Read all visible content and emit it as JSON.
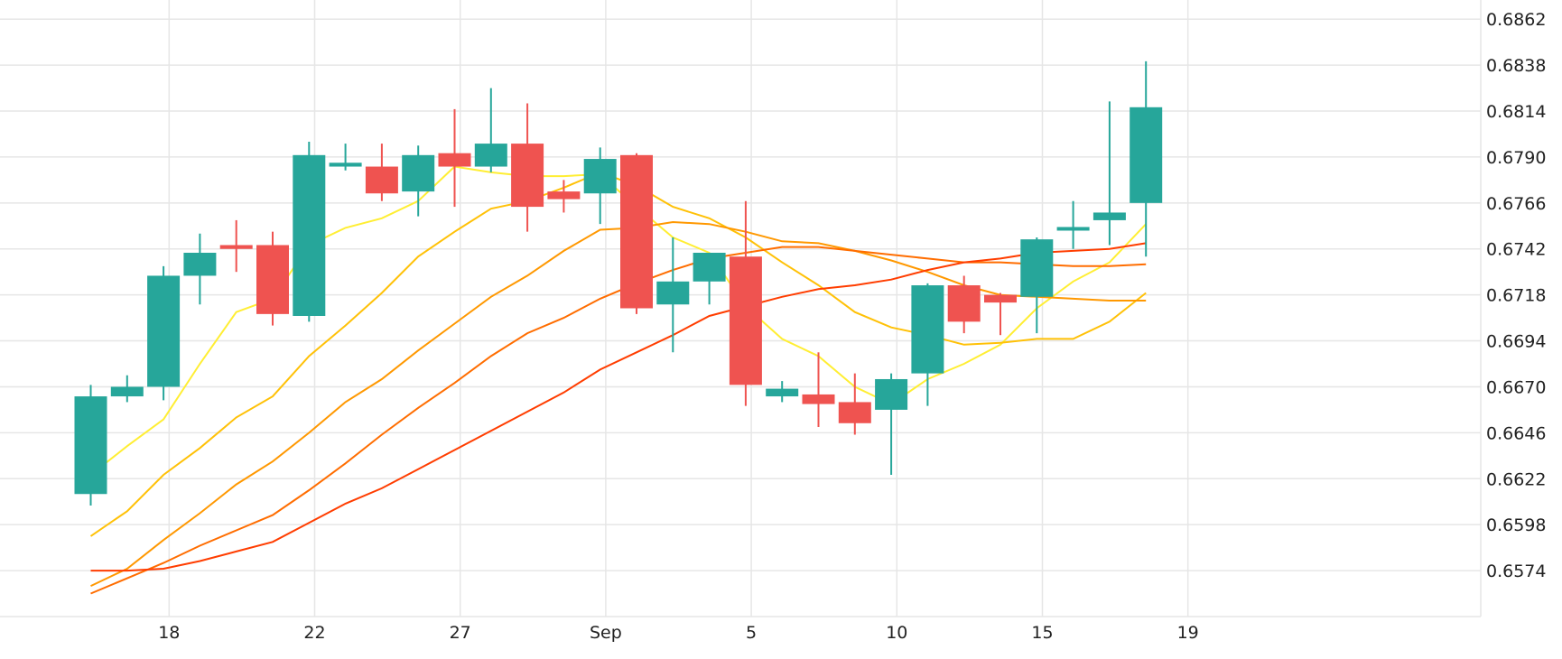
{
  "chart_data": {
    "type": "candlestick",
    "x_labels": [
      {
        "label": "18",
        "x": 1
      },
      {
        "label": "22",
        "x": 5
      },
      {
        "label": "27",
        "x": 9
      },
      {
        "label": "Sep",
        "x": 13
      },
      {
        "label": "5",
        "x": 17
      },
      {
        "label": "10",
        "x": 21
      },
      {
        "label": "15",
        "x": 25
      },
      {
        "label": "19",
        "x": 29
      }
    ],
    "y_ticks": [
      "0.6574",
      "0.6598",
      "0.6622",
      "0.6646",
      "0.6670",
      "0.6694",
      "0.6718",
      "0.6742",
      "0.6766",
      "0.6790",
      "0.6814",
      "0.6838",
      "0.6862"
    ],
    "ylim": [
      0.655,
      0.6872
    ],
    "up_color": "#26a69a",
    "down_color": "#ef5350",
    "candles": [
      {
        "x": 0,
        "open": 0.6614,
        "high": 0.6671,
        "low": 0.6608,
        "close": 0.6665
      },
      {
        "x": 1,
        "open": 0.6665,
        "high": 0.6676,
        "low": 0.6662,
        "close": 0.667
      },
      {
        "x": 2,
        "open": 0.667,
        "high": 0.6733,
        "low": 0.6663,
        "close": 0.6728
      },
      {
        "x": 3,
        "open": 0.6728,
        "high": 0.675,
        "low": 0.6713,
        "close": 0.674
      },
      {
        "x": 4,
        "open": 0.6744,
        "high": 0.6757,
        "low": 0.673,
        "close": 0.6742
      },
      {
        "x": 5,
        "open": 0.6744,
        "high": 0.6751,
        "low": 0.6702,
        "close": 0.6708
      },
      {
        "x": 6,
        "open": 0.6707,
        "high": 0.6798,
        "low": 0.6704,
        "close": 0.6791
      },
      {
        "x": 7,
        "open": 0.6785,
        "high": 0.6797,
        "low": 0.6783,
        "close": 0.6787
      },
      {
        "x": 8,
        "open": 0.6785,
        "high": 0.6797,
        "low": 0.6767,
        "close": 0.6771
      },
      {
        "x": 9,
        "open": 0.6772,
        "high": 0.6796,
        "low": 0.6759,
        "close": 0.6791
      },
      {
        "x": 10,
        "open": 0.6792,
        "high": 0.6815,
        "low": 0.6764,
        "close": 0.6785
      },
      {
        "x": 11,
        "open": 0.6785,
        "high": 0.6826,
        "low": 0.6782,
        "close": 0.6797
      },
      {
        "x": 12,
        "open": 0.6797,
        "high": 0.6818,
        "low": 0.6751,
        "close": 0.6764
      },
      {
        "x": 13,
        "open": 0.6772,
        "high": 0.6778,
        "low": 0.6761,
        "close": 0.6768
      },
      {
        "x": 14,
        "open": 0.6771,
        "high": 0.6795,
        "low": 0.6755,
        "close": 0.6789
      },
      {
        "x": 15,
        "open": 0.6791,
        "high": 0.6792,
        "low": 0.6708,
        "close": 0.6711
      },
      {
        "x": 16,
        "open": 0.6713,
        "high": 0.6748,
        "low": 0.6688,
        "close": 0.6725
      },
      {
        "x": 17,
        "open": 0.6725,
        "high": 0.6739,
        "low": 0.6713,
        "close": 0.674
      },
      {
        "x": 18,
        "open": 0.6738,
        "high": 0.6767,
        "low": 0.666,
        "close": 0.6671
      },
      {
        "x": 19,
        "open": 0.6665,
        "high": 0.6673,
        "low": 0.6662,
        "close": 0.6669
      },
      {
        "x": 20,
        "open": 0.6666,
        "high": 0.6688,
        "low": 0.6649,
        "close": 0.6661
      },
      {
        "x": 21,
        "open": 0.6662,
        "high": 0.6677,
        "low": 0.6645,
        "close": 0.6651
      },
      {
        "x": 22,
        "open": 0.6658,
        "high": 0.6677,
        "low": 0.6624,
        "close": 0.6674
      },
      {
        "x": 23,
        "open": 0.6677,
        "high": 0.6724,
        "low": 0.666,
        "close": 0.6723
      },
      {
        "x": 24,
        "open": 0.6723,
        "high": 0.6728,
        "low": 0.6698,
        "close": 0.6704
      },
      {
        "x": 25,
        "open": 0.6718,
        "high": 0.6719,
        "low": 0.6697,
        "close": 0.6714
      },
      {
        "x": 26,
        "open": 0.6717,
        "high": 0.6748,
        "low": 0.6698,
        "close": 0.6747
      },
      {
        "x": 27,
        "open": 0.6752,
        "high": 0.6767,
        "low": 0.6742,
        "close": 0.6753
      },
      {
        "x": 28,
        "open": 0.6757,
        "high": 0.6819,
        "low": 0.6744,
        "close": 0.6761
      },
      {
        "x": 29,
        "open": 0.6766,
        "high": 0.684,
        "low": 0.6738,
        "close": 0.6816
      }
    ],
    "moving_averages": [
      {
        "color": "#ffee33",
        "values": [
          [
            0,
            0.6624
          ],
          [
            1,
            0.6639
          ],
          [
            2,
            0.6653
          ],
          [
            3,
            0.6682
          ],
          [
            4,
            0.6709
          ],
          [
            5,
            0.6716
          ],
          [
            6,
            0.6744
          ],
          [
            7,
            0.6753
          ],
          [
            8,
            0.6758
          ],
          [
            9,
            0.6767
          ],
          [
            10,
            0.6785
          ],
          [
            11,
            0.6782
          ],
          [
            12,
            0.678
          ],
          [
            13,
            0.678
          ],
          [
            14,
            0.6781
          ],
          [
            15,
            0.6764
          ],
          [
            16,
            0.6748
          ],
          [
            17,
            0.674
          ],
          [
            18,
            0.6712
          ],
          [
            19,
            0.6695
          ],
          [
            20,
            0.6686
          ],
          [
            21,
            0.667
          ],
          [
            22,
            0.6661
          ],
          [
            23,
            0.6674
          ],
          [
            24,
            0.6682
          ],
          [
            25,
            0.6692
          ],
          [
            26,
            0.6711
          ],
          [
            27,
            0.6725
          ],
          [
            28,
            0.6735
          ],
          [
            29,
            0.6755
          ]
        ]
      },
      {
        "color": "#ffc107",
        "values": [
          [
            0,
            0.6592
          ],
          [
            1,
            0.6605
          ],
          [
            2,
            0.6624
          ],
          [
            3,
            0.6638
          ],
          [
            4,
            0.6654
          ],
          [
            5,
            0.6665
          ],
          [
            6,
            0.6686
          ],
          [
            7,
            0.6702
          ],
          [
            8,
            0.6719
          ],
          [
            9,
            0.6738
          ],
          [
            10,
            0.6751
          ],
          [
            11,
            0.6763
          ],
          [
            12,
            0.6767
          ],
          [
            13,
            0.6774
          ],
          [
            14,
            0.6782
          ],
          [
            15,
            0.6775
          ],
          [
            16,
            0.6764
          ],
          [
            17,
            0.6758
          ],
          [
            18,
            0.6748
          ],
          [
            19,
            0.6735
          ],
          [
            20,
            0.6723
          ],
          [
            21,
            0.6709
          ],
          [
            22,
            0.6701
          ],
          [
            23,
            0.6697
          ],
          [
            24,
            0.6692
          ],
          [
            25,
            0.6693
          ],
          [
            26,
            0.6695
          ],
          [
            27,
            0.6695
          ],
          [
            28,
            0.6704
          ],
          [
            29,
            0.6719
          ]
        ]
      },
      {
        "color": "#ff9800",
        "values": [
          [
            0,
            0.6566
          ],
          [
            1,
            0.6575
          ],
          [
            2,
            0.659
          ],
          [
            3,
            0.6604
          ],
          [
            4,
            0.6619
          ],
          [
            5,
            0.6631
          ],
          [
            6,
            0.6646
          ],
          [
            7,
            0.6662
          ],
          [
            8,
            0.6674
          ],
          [
            9,
            0.6689
          ],
          [
            10,
            0.6703
          ],
          [
            11,
            0.6717
          ],
          [
            12,
            0.6728
          ],
          [
            13,
            0.6741
          ],
          [
            14,
            0.6752
          ],
          [
            15,
            0.6753
          ],
          [
            16,
            0.6756
          ],
          [
            17,
            0.6755
          ],
          [
            18,
            0.6751
          ],
          [
            19,
            0.6746
          ],
          [
            20,
            0.6745
          ],
          [
            21,
            0.6741
          ],
          [
            22,
            0.6736
          ],
          [
            23,
            0.673
          ],
          [
            24,
            0.6723
          ],
          [
            25,
            0.6718
          ],
          [
            26,
            0.6717
          ],
          [
            27,
            0.6716
          ],
          [
            28,
            0.6715
          ],
          [
            29,
            0.6715
          ]
        ]
      },
      {
        "color": "#ff6d00",
        "values": [
          [
            0,
            0.6562
          ],
          [
            1,
            0.657
          ],
          [
            2,
            0.6578
          ],
          [
            3,
            0.6587
          ],
          [
            4,
            0.6595
          ],
          [
            5,
            0.6603
          ],
          [
            6,
            0.6616
          ],
          [
            7,
            0.663
          ],
          [
            8,
            0.6645
          ],
          [
            9,
            0.6659
          ],
          [
            10,
            0.6672
          ],
          [
            11,
            0.6686
          ],
          [
            12,
            0.6698
          ],
          [
            13,
            0.6706
          ],
          [
            14,
            0.6716
          ],
          [
            15,
            0.6724
          ],
          [
            16,
            0.6731
          ],
          [
            17,
            0.6737
          ],
          [
            18,
            0.674
          ],
          [
            19,
            0.6743
          ],
          [
            20,
            0.6743
          ],
          [
            21,
            0.6741
          ],
          [
            22,
            0.6739
          ],
          [
            23,
            0.6737
          ],
          [
            24,
            0.6735
          ],
          [
            25,
            0.6735
          ],
          [
            26,
            0.6734
          ],
          [
            27,
            0.6733
          ],
          [
            28,
            0.6733
          ],
          [
            29,
            0.6734
          ]
        ]
      },
      {
        "color": "#ff3d00",
        "values": [
          [
            0,
            0.6574
          ],
          [
            1,
            0.6574
          ],
          [
            2,
            0.6575
          ],
          [
            3,
            0.6579
          ],
          [
            4,
            0.6584
          ],
          [
            5,
            0.6589
          ],
          [
            6,
            0.6599
          ],
          [
            7,
            0.6609
          ],
          [
            8,
            0.6617
          ],
          [
            9,
            0.6627
          ],
          [
            10,
            0.6637
          ],
          [
            11,
            0.6647
          ],
          [
            12,
            0.6657
          ],
          [
            13,
            0.6667
          ],
          [
            14,
            0.6679
          ],
          [
            15,
            0.6688
          ],
          [
            16,
            0.6697
          ],
          [
            17,
            0.6707
          ],
          [
            18,
            0.6712
          ],
          [
            19,
            0.6717
          ],
          [
            20,
            0.6721
          ],
          [
            21,
            0.6723
          ],
          [
            22,
            0.6726
          ],
          [
            23,
            0.6731
          ],
          [
            24,
            0.6735
          ],
          [
            25,
            0.6737
          ],
          [
            26,
            0.674
          ],
          [
            27,
            0.6741
          ],
          [
            28,
            0.6742
          ],
          [
            29,
            0.6745
          ]
        ]
      }
    ]
  }
}
